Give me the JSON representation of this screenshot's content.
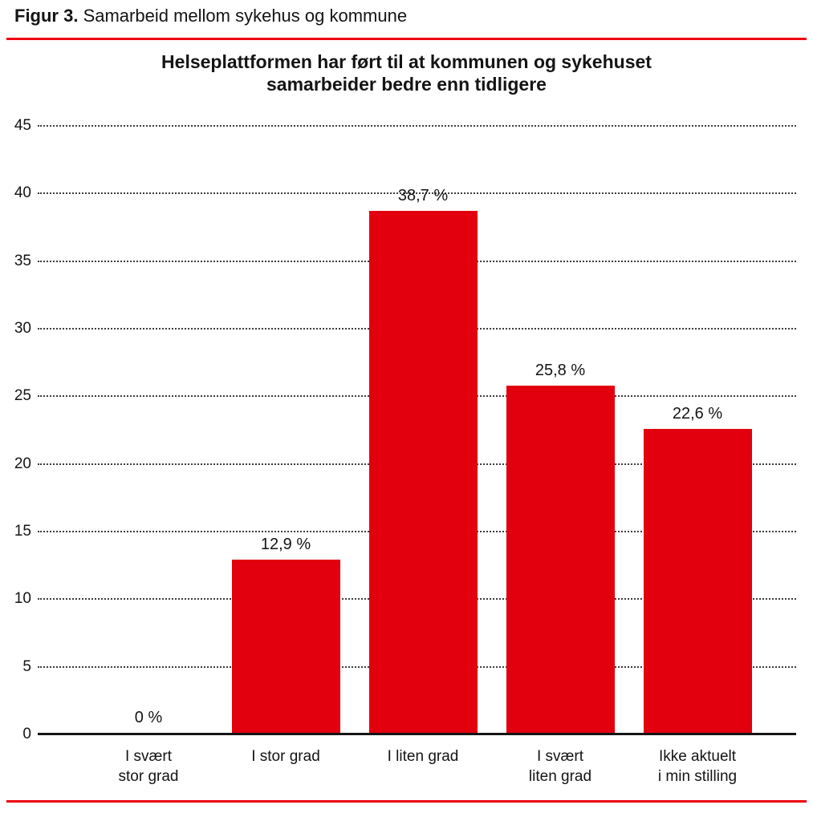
{
  "figure": {
    "caption_label": "Figur 3.",
    "caption_text": " Samarbeid mellom sykehus og kommune"
  },
  "colors": {
    "bar": "#e2000f",
    "rule": "#ee0010",
    "axis": "#151515",
    "grid": "#3c3c3c",
    "text": "#141414",
    "background": "#ffffff"
  },
  "chart_data": {
    "type": "bar",
    "title": "Helseplattformen har ført til at kommunen og sykehuset samarbeider bedre enn tidligere",
    "title_lines": [
      "Helseplattformen har ført til at kommunen og sykehuset",
      "samarbeider bedre enn tidligere"
    ],
    "categories": [
      "I svært stor grad",
      "I stor grad",
      "I liten grad",
      "I svært liten grad",
      "Ikke aktuelt i min stilling"
    ],
    "categories_display": [
      "I svært\nstor grad",
      "I stor grad",
      "I liten grad",
      "I svært\nliten grad",
      "Ikke aktuelt\ni min stilling"
    ],
    "values": [
      0,
      12.9,
      38.7,
      25.8,
      22.6
    ],
    "value_labels": [
      "0 %",
      "12,9 %",
      "38,7 %",
      "25,8 %",
      "22,6 %"
    ],
    "unit": "%",
    "xlabel": "",
    "ylabel": "",
    "ylim": [
      0,
      45
    ],
    "yticks": [
      0,
      5,
      10,
      15,
      20,
      25,
      30,
      35,
      40,
      45
    ],
    "grid": "horizontal-dotted",
    "legend": "none",
    "bar_color": "#e2000f"
  }
}
